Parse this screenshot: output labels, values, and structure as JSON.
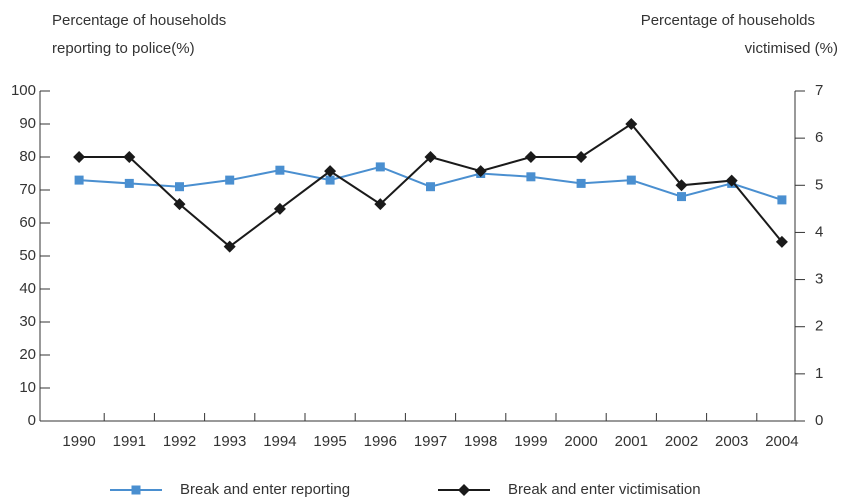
{
  "chart_data": {
    "type": "line",
    "y_label": [
      "Percentage of households",
      "reporting to police(%)"
    ],
    "y2_label": [
      "Percentage of households",
      "victimised (%)"
    ],
    "categories": [
      "1990",
      "1991",
      "1992",
      "1993",
      "1994",
      "1995",
      "1996",
      "1997",
      "1998",
      "1999",
      "2000",
      "2001",
      "2002",
      "2003",
      "2004"
    ],
    "series": [
      {
        "name": "Break and enter reporting",
        "color": "#4a8fd0",
        "marker": "square",
        "values": [
          73,
          72,
          71,
          73,
          76,
          73,
          77,
          71,
          75,
          74,
          72,
          73,
          68,
          72,
          67
        ]
      },
      {
        "name": "Break and enter victimisation",
        "color": "#1a1a1a",
        "marker": "diamond",
        "axis": "y2",
        "values": [
          5.6,
          5.6,
          4.6,
          3.7,
          4.5,
          5.3,
          4.6,
          5.6,
          5.3,
          5.6,
          5.6,
          6.3,
          5.0,
          5.1,
          3.8
        ]
      }
    ],
    "ylim": [
      0,
      100
    ],
    "yticks": [
      0,
      10,
      20,
      30,
      40,
      50,
      60,
      70,
      80,
      90,
      100
    ],
    "y2lim": [
      0,
      7
    ],
    "y2ticks": [
      0,
      1,
      2,
      3,
      4,
      5,
      6,
      7
    ],
    "legend": "bottom"
  }
}
